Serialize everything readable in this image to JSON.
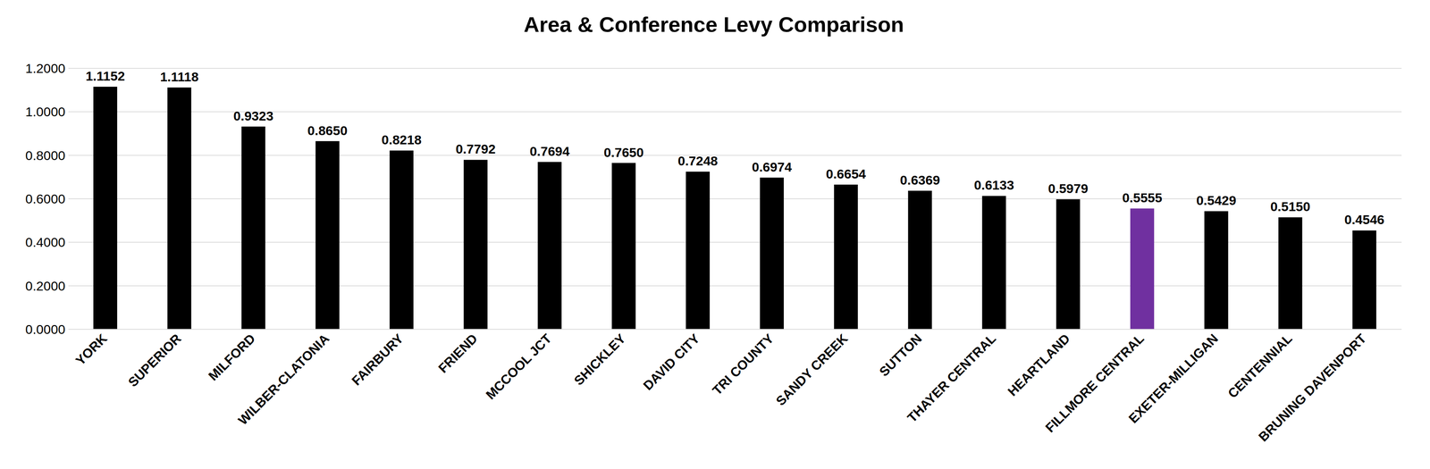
{
  "chart_data": {
    "type": "bar",
    "title": "Area & Conference Levy Comparison",
    "categories": [
      "YORK",
      "SUPERIOR",
      "MILFORD",
      "WILBER-CLATONIA",
      "FAIRBURY",
      "FRIEND",
      "MCCOOL JCT",
      "SHICKLEY",
      "DAVID CITY",
      "TRI COUNTY",
      "SANDY CREEK",
      "SUTTON",
      "THAYER CENTRAL",
      "HEARTLAND",
      "FILLMORE CENTRAL",
      "EXETER-MILLIGAN",
      "CENTENNIAL",
      "BRUNING DAVENPORT"
    ],
    "values": [
      1.1152,
      1.1118,
      0.9323,
      0.865,
      0.8218,
      0.7792,
      0.7694,
      0.765,
      0.7248,
      0.6974,
      0.6654,
      0.6369,
      0.6133,
      0.5979,
      0.5555,
      0.5429,
      0.515,
      0.4546
    ],
    "value_labels": [
      "1.1152",
      "1.1118",
      "0.9323",
      "0.8650",
      "0.8218",
      "0.7792",
      "0.7694",
      "0.7650",
      "0.7248",
      "0.6974",
      "0.6654",
      "0.6369",
      "0.6133",
      "0.5979",
      "0.5555",
      "0.5429",
      "0.5150",
      "0.4546"
    ],
    "colors": [
      "#000000",
      "#000000",
      "#000000",
      "#000000",
      "#000000",
      "#000000",
      "#000000",
      "#000000",
      "#000000",
      "#000000",
      "#000000",
      "#000000",
      "#000000",
      "#000000",
      "#7030a0",
      "#000000",
      "#000000",
      "#000000"
    ],
    "ylim": [
      0,
      1.2
    ],
    "yticks": [
      {
        "value": 0,
        "label": "0.0000"
      },
      {
        "value": 0.2,
        "label": "0.2000"
      },
      {
        "value": 0.4,
        "label": "0.4000"
      },
      {
        "value": 0.6,
        "label": "0.6000"
      },
      {
        "value": 0.8,
        "label": "0.8000"
      },
      {
        "value": 1.0,
        "label": "1.0000"
      },
      {
        "value": 1.2,
        "label": "1.2000"
      }
    ],
    "grid": true,
    "data_labels": true
  }
}
